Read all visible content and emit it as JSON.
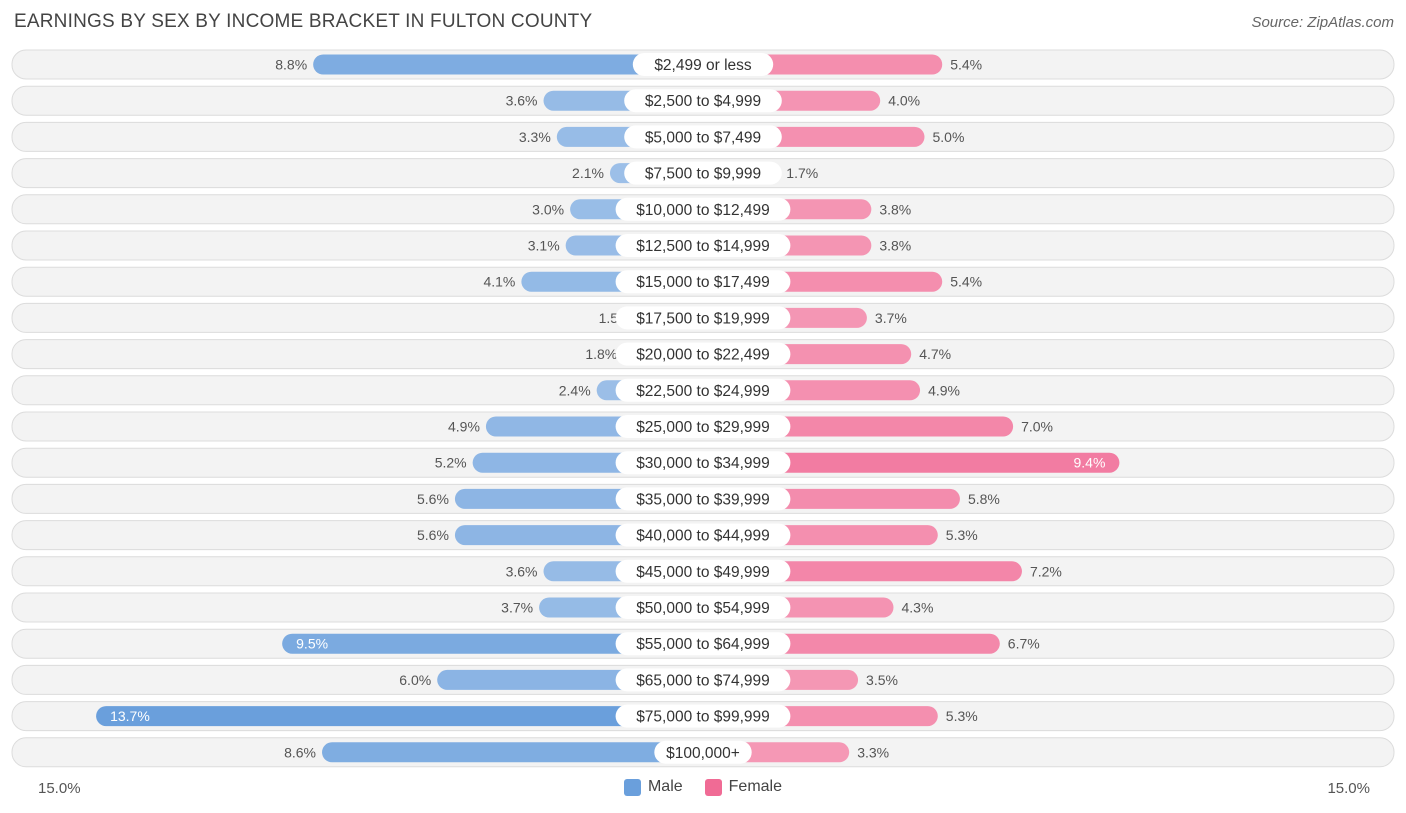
{
  "chart_data": {
    "type": "bar",
    "orientation": "horizontal-diverging",
    "title": "EARNINGS BY SEX BY INCOME BRACKET IN FULTON COUNTY",
    "source": "Source: ZipAtlas.com",
    "categories": [
      "$2,499 or less",
      "$2,500 to $4,999",
      "$5,000 to $7,499",
      "$7,500 to $9,999",
      "$10,000 to $12,499",
      "$12,500 to $14,999",
      "$15,000 to $17,499",
      "$17,500 to $19,999",
      "$20,000 to $22,499",
      "$22,500 to $24,999",
      "$25,000 to $29,999",
      "$30,000 to $34,999",
      "$35,000 to $39,999",
      "$40,000 to $44,999",
      "$45,000 to $49,999",
      "$50,000 to $54,999",
      "$55,000 to $64,999",
      "$65,000 to $74,999",
      "$75,000 to $99,999",
      "$100,000+"
    ],
    "series": [
      {
        "name": "Male",
        "color": "#6a9fdc",
        "values": [
          8.8,
          3.6,
          3.3,
          2.1,
          3.0,
          3.1,
          4.1,
          1.5,
          1.8,
          2.4,
          4.9,
          5.2,
          5.6,
          5.6,
          3.6,
          3.7,
          9.5,
          6.0,
          13.7,
          8.6
        ],
        "labels": [
          "8.8%",
          "3.6%",
          "3.3%",
          "2.1%",
          "3.0%",
          "3.1%",
          "4.1%",
          "1.5%",
          "1.8%",
          "2.4%",
          "4.9%",
          "5.2%",
          "5.6%",
          "5.6%",
          "3.6%",
          "3.7%",
          "9.5%",
          "6.0%",
          "13.7%",
          "8.6%"
        ]
      },
      {
        "name": "Female",
        "color": "#f06b95",
        "values": [
          5.4,
          4.0,
          5.0,
          1.7,
          3.8,
          3.8,
          5.4,
          3.7,
          4.7,
          4.9,
          7.0,
          9.4,
          5.8,
          5.3,
          7.2,
          4.3,
          6.7,
          3.5,
          5.3,
          3.3
        ],
        "labels": [
          "5.4%",
          "4.0%",
          "5.0%",
          "1.7%",
          "3.8%",
          "3.8%",
          "5.4%",
          "3.7%",
          "4.7%",
          "4.9%",
          "7.0%",
          "9.4%",
          "5.8%",
          "5.3%",
          "7.2%",
          "4.3%",
          "6.7%",
          "3.5%",
          "5.3%",
          "3.3%"
        ]
      }
    ],
    "xlim": [
      -15.0,
      15.0
    ],
    "axis_left_label": "15.0%",
    "axis_right_label": "15.0%",
    "legend_position": "bottom-center"
  }
}
